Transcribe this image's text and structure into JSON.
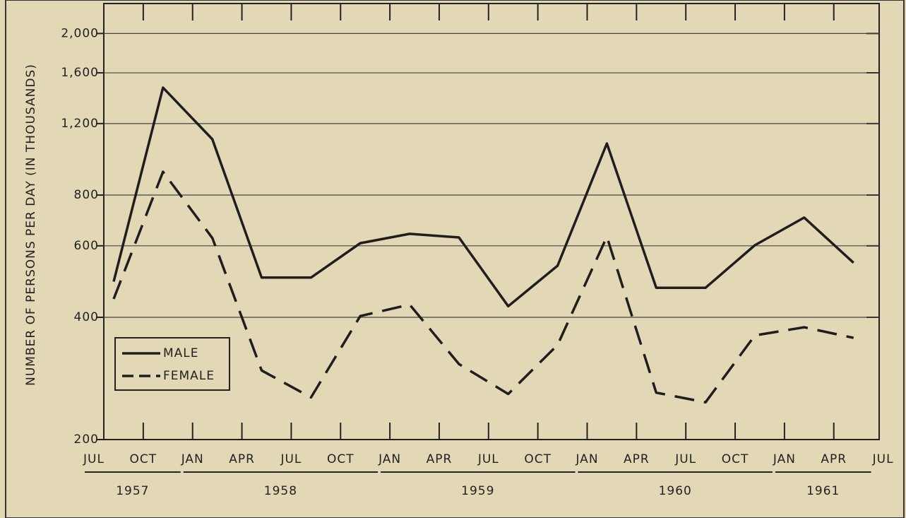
{
  "chart_data": {
    "type": "line",
    "y_label": "NUMBER OF PERSONS PER DAY (IN THOUSANDS)",
    "yscale": "log",
    "ylim": [
      200,
      2370
    ],
    "yticks": [
      200,
      400,
      600,
      800,
      {
        "value": 1200,
        "label": "1,200"
      },
      {
        "value": 1600,
        "label": "1,600"
      },
      {
        "value": 2000,
        "label": "2,000"
      }
    ],
    "grid": true,
    "xlim": [
      1957.55,
      1961.48
    ],
    "xticks": [
      {
        "value": 1957.5,
        "label": "JUL"
      },
      {
        "value": 1957.75,
        "label": "OCT"
      },
      {
        "value": 1958,
        "label": "JAN"
      },
      {
        "value": 1958.25,
        "label": "APR"
      },
      {
        "value": 1958.5,
        "label": "JUL"
      },
      {
        "value": 1958.75,
        "label": "OCT"
      },
      {
        "value": 1959,
        "label": "JAN"
      },
      {
        "value": 1959.25,
        "label": "APR"
      },
      {
        "value": 1959.5,
        "label": "JUL"
      },
      {
        "value": 1959.75,
        "label": "OCT"
      },
      {
        "value": 1960,
        "label": "JAN"
      },
      {
        "value": 1960.25,
        "label": "APR"
      },
      {
        "value": 1960.5,
        "label": "JUL"
      },
      {
        "value": 1960.75,
        "label": "OCT"
      },
      {
        "value": 1961,
        "label": "JAN"
      },
      {
        "value": 1961.25,
        "label": "APR"
      },
      {
        "value": 1961.5,
        "label": "JUL"
      }
    ],
    "years": [
      1957,
      1958,
      1959,
      1960,
      1961
    ],
    "x": [
      1957.6,
      1957.85,
      1958.1,
      1958.35,
      1958.6,
      1958.85,
      1959.1,
      1959.35,
      1959.6,
      1959.85,
      1960.1,
      1960.35,
      1960.6,
      1960.85,
      1961.1,
      1961.35
    ],
    "legend": "lower left",
    "series": [
      {
        "name": "MALE",
        "color": "#1e1e1e",
        "line_style": "solid",
        "values": [
          490,
          1471,
          1098,
          501,
          501,
          609,
          642,
          629,
          426,
          536,
          1072,
          473,
          473,
          602,
          704,
          545
        ]
      },
      {
        "name": "FEMALE",
        "color": "#1e1e1e",
        "line_style": "dashed",
        "values": [
          444,
          913,
          627,
          296,
          254,
          403,
          430,
          307,
          259,
          342,
          632,
          261,
          247,
          361,
          378,
          356
        ]
      }
    ]
  }
}
